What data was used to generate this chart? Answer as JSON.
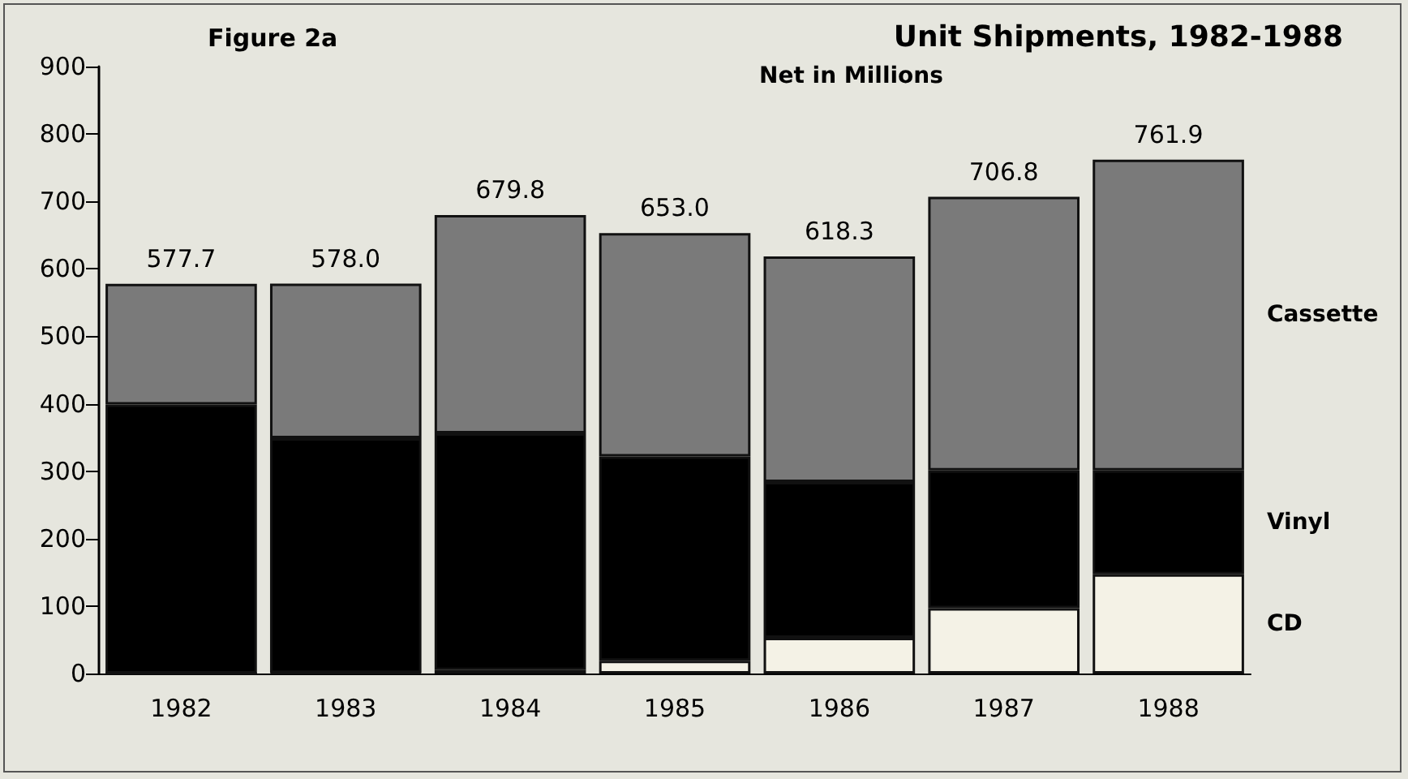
{
  "chart_data": {
    "type": "bar",
    "title": "Unit Shipments, 1982-1988",
    "subtitle": "Net in Millions",
    "annotations": [
      "Figure 2a"
    ],
    "categories": [
      "1982",
      "1983",
      "1984",
      "1985",
      "1986",
      "1987",
      "1988"
    ],
    "stacked": true,
    "series": [
      {
        "name": "CD",
        "color": "#f4f2e6",
        "values": [
          0,
          1,
          5,
          19,
          53,
          97,
          147
        ]
      },
      {
        "name": "Vinyl",
        "color": "#000000",
        "values": [
          399,
          348,
          351,
          303,
          231,
          204,
          154
        ]
      },
      {
        "name": "Cassette",
        "color": "#7a7a7a",
        "values": [
          178.7,
          229,
          323.8,
          331,
          334.3,
          405.8,
          460.9
        ]
      }
    ],
    "totals": [
      "577.7",
      "578.0",
      "679.8",
      "653.0",
      "618.3",
      "706.8",
      "761.9"
    ],
    "ylim": [
      0,
      900
    ],
    "yticks": [
      0,
      100,
      200,
      300,
      400,
      500,
      600,
      700,
      800,
      900
    ],
    "grid": false,
    "legend": false
  }
}
